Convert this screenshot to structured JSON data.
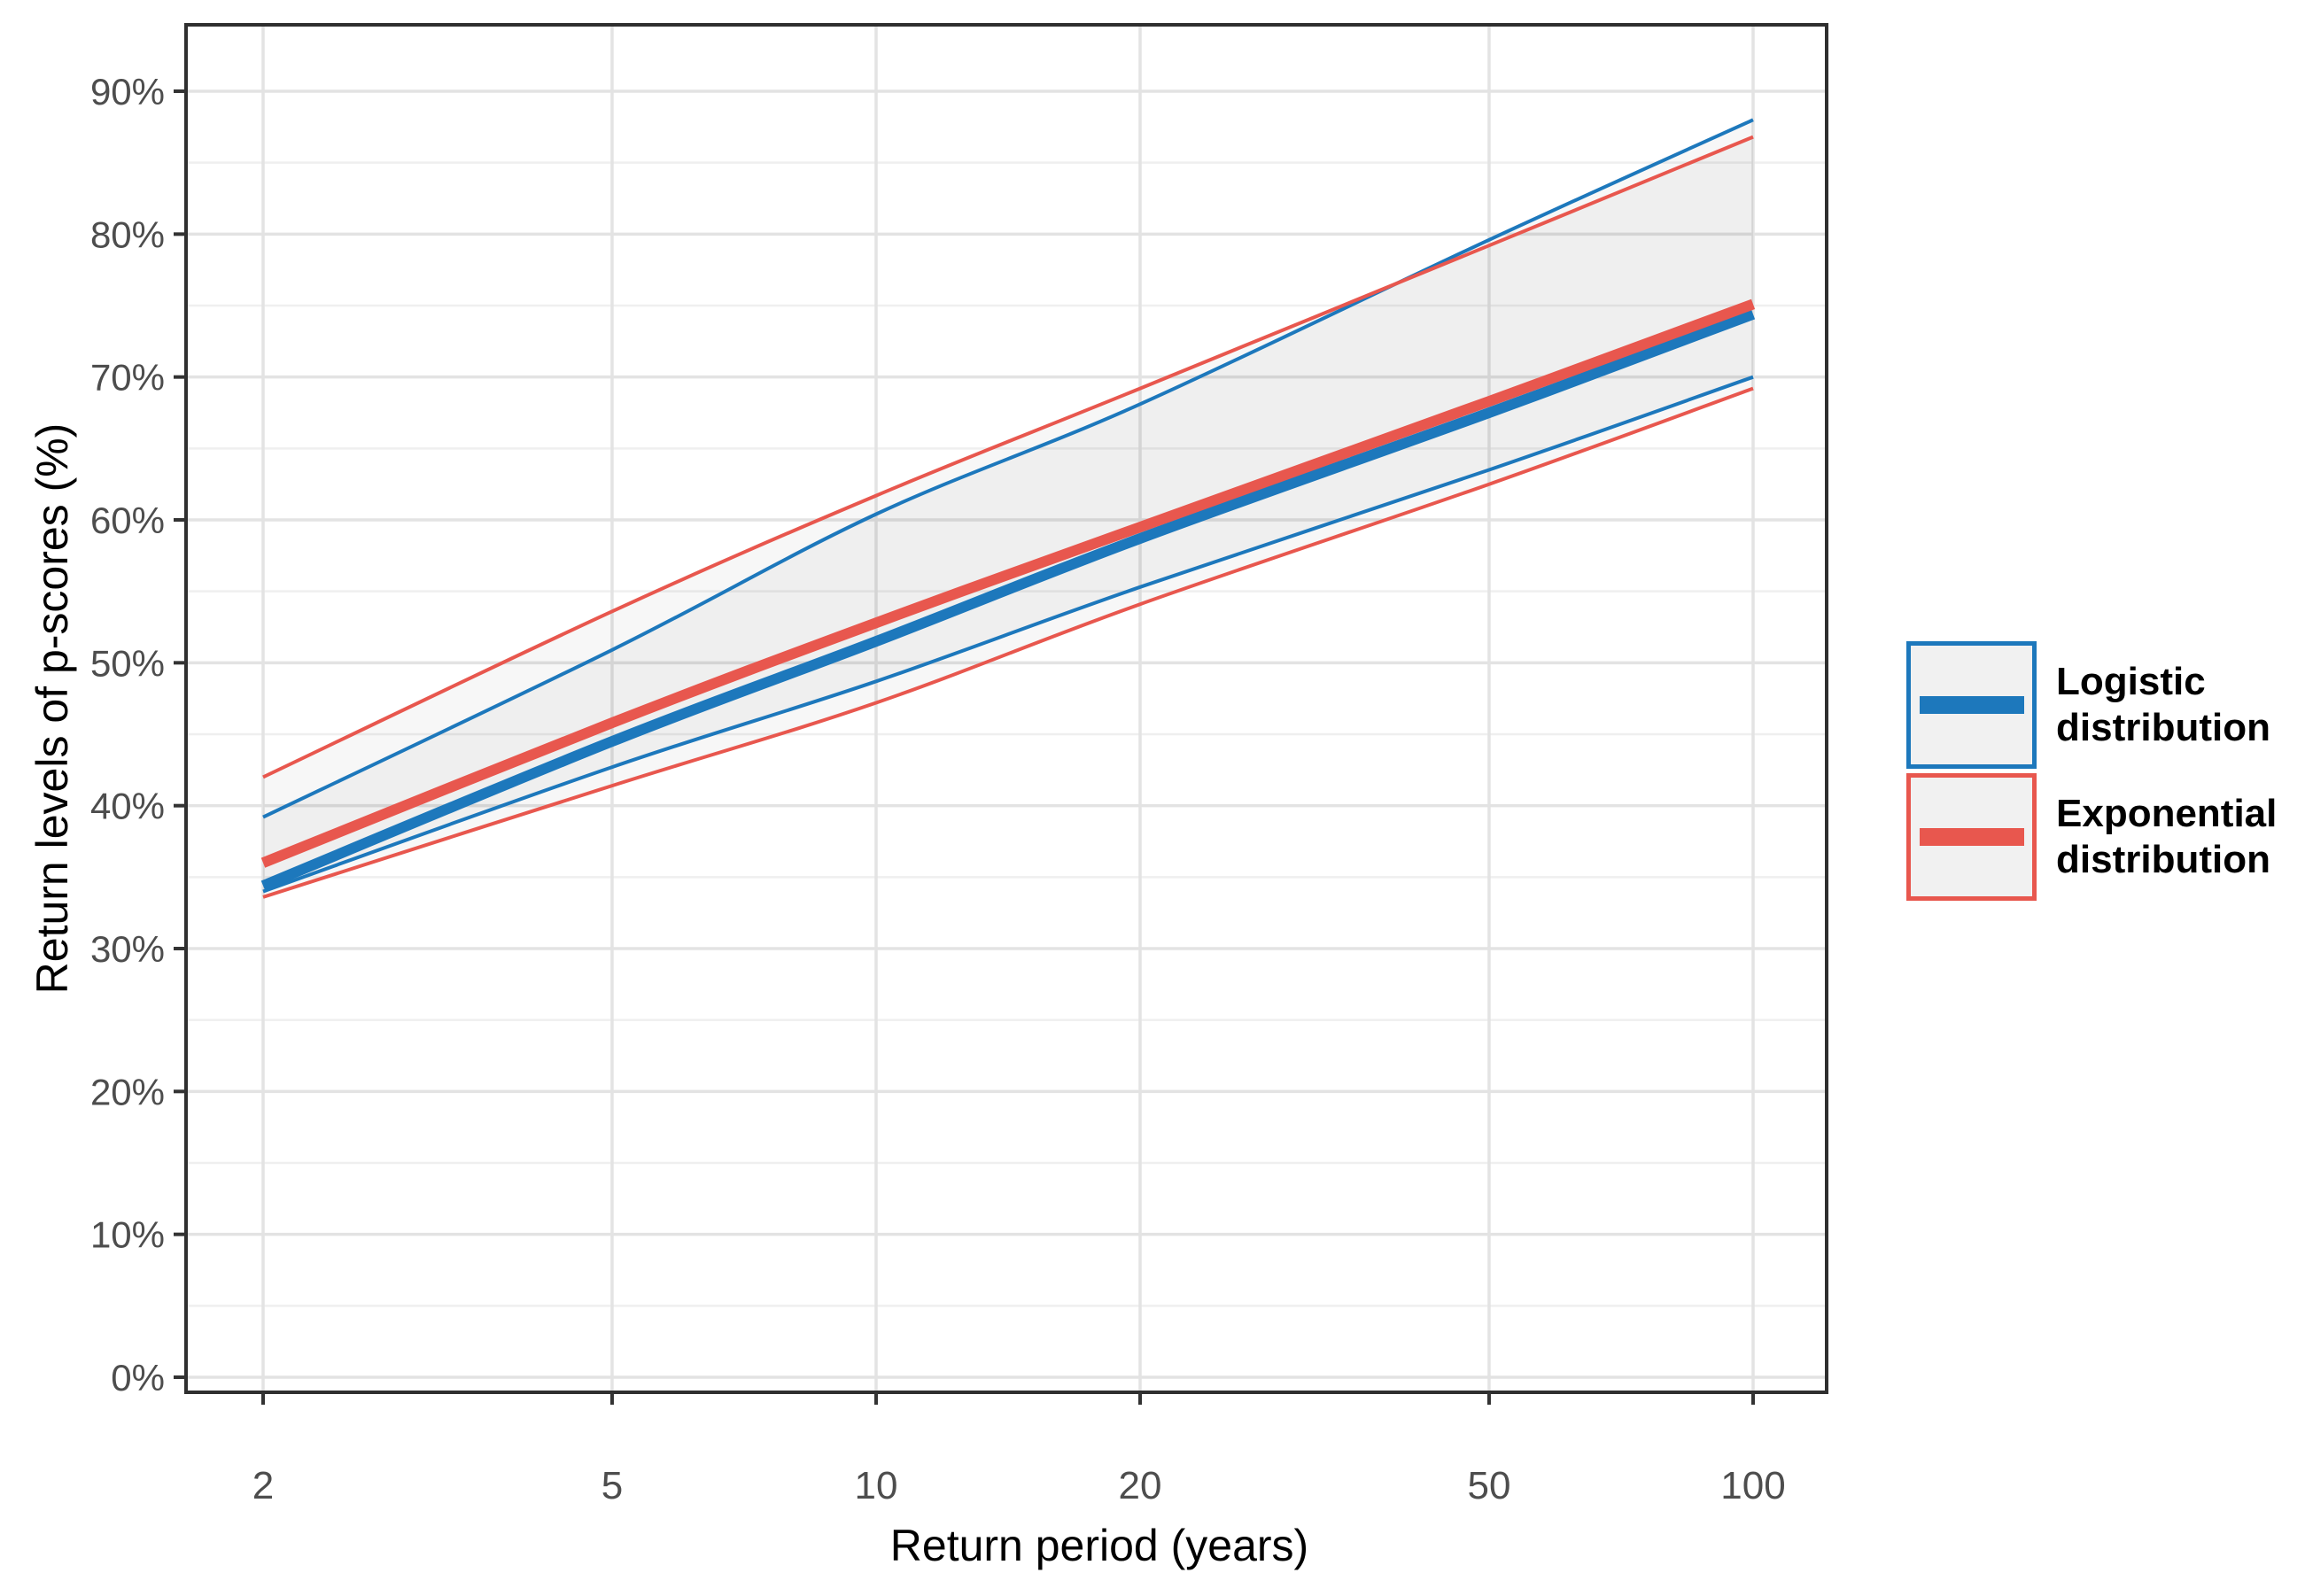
{
  "chart_data": {
    "type": "line",
    "title": "",
    "xlabel": "Return period (years)",
    "ylabel": "Return levels of p-scores (%)",
    "x_scale": "log10",
    "x": [
      2,
      5,
      10,
      20,
      50,
      100
    ],
    "x_tick_labels": [
      "2",
      "5",
      "10",
      "20",
      "50",
      "100"
    ],
    "y_major_ticks": [
      0,
      10,
      20,
      30,
      40,
      50,
      60,
      70,
      80,
      90
    ],
    "y_minor_ticks": [
      5,
      15,
      25,
      35,
      45,
      55,
      65,
      75,
      85
    ],
    "y_tick_labels": [
      "0%",
      "10%",
      "20%",
      "30%",
      "40%",
      "50%",
      "60%",
      "70%",
      "80%",
      "90%"
    ],
    "ylim": [
      -1.05,
      94.65
    ],
    "grid": "major-and-minor-y, major-x-only",
    "legend_position": "right",
    "series": [
      {
        "name": "Logistic distribution",
        "color": "#1d78bc",
        "center": [
          34.4,
          44.5,
          51.5,
          58.7,
          67.5,
          74.4
        ],
        "upper": [
          39.2,
          50.9,
          60.4,
          68.1,
          79.6,
          88.0
        ],
        "lower": [
          34.0,
          42.7,
          48.7,
          55.3,
          63.5,
          70.0
        ]
      },
      {
        "name": "Exponential distribution",
        "color": "#e8574e",
        "center": [
          36.0,
          45.8,
          52.8,
          59.5,
          68.3,
          75.1
        ],
        "upper": [
          42.0,
          53.6,
          61.7,
          69.2,
          79.2,
          86.8
        ],
        "lower": [
          33.6,
          41.4,
          47.2,
          54.1,
          62.5,
          69.2
        ]
      }
    ],
    "band_fill": "rgba(0,0,0,0.033)"
  },
  "x_axis": {
    "title": "Return period (years)"
  },
  "y_axis": {
    "title": "Return levels of p-scores (%)"
  },
  "legend": {
    "items": [
      {
        "lines": [
          "Logistic",
          "distribution"
        ],
        "color": "#1d78bc"
      },
      {
        "lines": [
          "Exponential",
          "distribution"
        ],
        "color": "#e8574e"
      }
    ]
  },
  "style": {
    "background": "#ffffff",
    "panel_border": "#2f2f2f",
    "grid_major": "#e3e3e3",
    "grid_minor": "#efefef",
    "tick_color": "#333333",
    "tick_label_color": "#4d4d4d",
    "blue": "#1d78bc",
    "red": "#e8574e"
  }
}
